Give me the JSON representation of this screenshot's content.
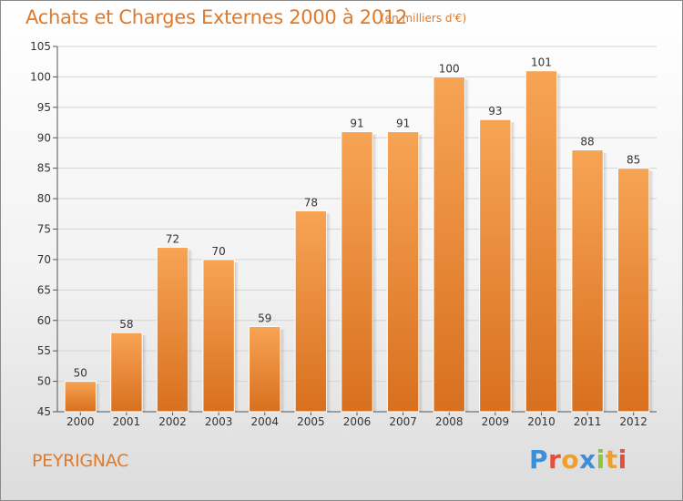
{
  "title": "Achats et Charges Externes 2000 à 2012",
  "unit": "(en milliers d'€)",
  "commune": "PEYRIGNAC",
  "logo": {
    "text": "Proxiti",
    "letter_colors": [
      "#3a8fd8",
      "#e84c3d",
      "#f0a02a",
      "#3a8fd8",
      "#8cc63f",
      "#f0a02a",
      "#e84c3d"
    ]
  },
  "colors": {
    "bar_top": "#f7a455",
    "bar_bottom": "#d8701e",
    "text_accent": "#e07a2a"
  },
  "chart_data": {
    "type": "bar",
    "categories": [
      "2000",
      "2001",
      "2002",
      "2003",
      "2004",
      "2005",
      "2006",
      "2007",
      "2008",
      "2009",
      "2010",
      "2011",
      "2012"
    ],
    "values": [
      50,
      58,
      72,
      70,
      59,
      78,
      91,
      91,
      100,
      93,
      101,
      88,
      85
    ],
    "data_labels": [
      "50",
      "58",
      "72",
      "70",
      "59",
      "78",
      "91",
      "91",
      "100",
      "93",
      "101",
      "88",
      "85"
    ],
    "yticks": [
      "45",
      "50",
      "55",
      "60",
      "65",
      "70",
      "75",
      "80",
      "85",
      "90",
      "95",
      "100",
      "105"
    ],
    "ylim": [
      45,
      105
    ],
    "grid": true,
    "legend": "none"
  }
}
